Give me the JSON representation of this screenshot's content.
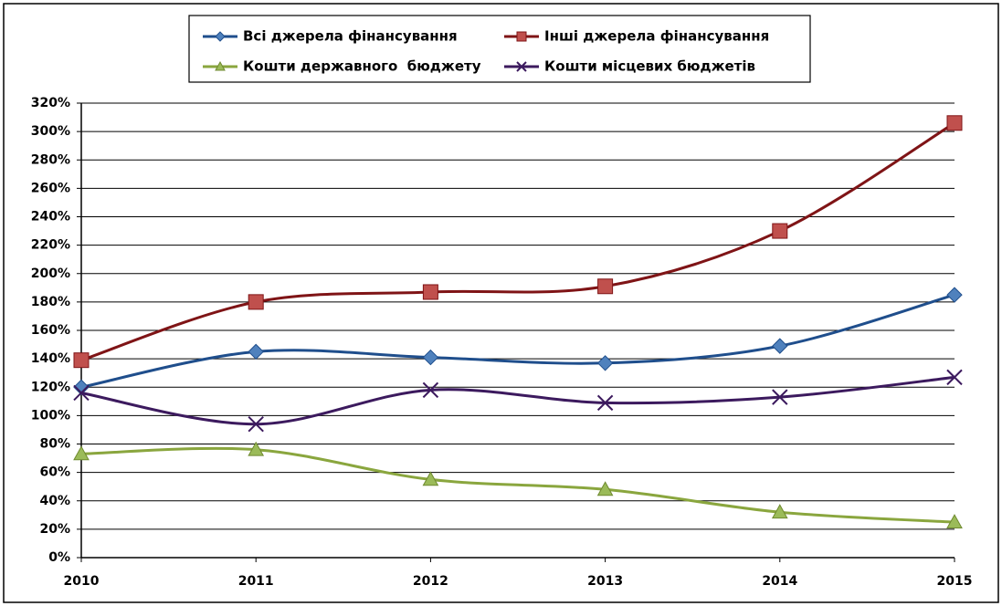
{
  "chart_data": {
    "type": "line",
    "x": [
      2010,
      2011,
      2012,
      2013,
      2014,
      2015
    ],
    "xlim": [
      2010,
      2015
    ],
    "xticks": [
      2010,
      2011,
      2012,
      2013,
      2014,
      2015
    ],
    "ylim": [
      0,
      320
    ],
    "yticks": [
      {
        "value": 0,
        "label": "0%"
      },
      {
        "value": 20,
        "label": "20%"
      },
      {
        "value": 40,
        "label": "40%"
      },
      {
        "value": 60,
        "label": "60%"
      },
      {
        "value": 80,
        "label": "80%"
      },
      {
        "value": 100,
        "label": "100%"
      },
      {
        "value": 120,
        "label": "120%"
      },
      {
        "value": 140,
        "label": "140%"
      },
      {
        "value": 160,
        "label": "160%"
      },
      {
        "value": 180,
        "label": "180%"
      },
      {
        "value": 200,
        "label": "200%"
      },
      {
        "value": 220,
        "label": "220%"
      },
      {
        "value": 240,
        "label": "240%"
      },
      {
        "value": 260,
        "label": "260%"
      },
      {
        "value": 280,
        "label": "280%"
      },
      {
        "value": 300,
        "label": "300%"
      },
      {
        "value": 320,
        "label": "320%"
      }
    ],
    "grid": true,
    "smooth": true,
    "legend": "top",
    "series": [
      {
        "name": "Всі джерела фінансування",
        "color": "#1f4e8c",
        "marker": "diamond",
        "marker_color": "#4f81bd",
        "values": [
          120,
          145,
          141,
          137,
          149,
          185
        ]
      },
      {
        "name": "Інші джерела фінансування",
        "color": "#7f1416",
        "marker": "square",
        "marker_color": "#c0504d",
        "values": [
          139,
          180,
          187,
          191,
          230,
          306
        ]
      },
      {
        "name": "Кошти державного  бюджету",
        "color": "#8aa63e",
        "marker": "triangle",
        "marker_color": "#9bbb59",
        "values": [
          73,
          76,
          55,
          48,
          32,
          25
        ]
      },
      {
        "name": "Кошти місцевих бюджетів",
        "color": "#3c1a5e",
        "marker": "x",
        "marker_color": "#3c1a5e",
        "values": [
          116,
          94,
          118,
          109,
          113,
          127
        ]
      }
    ]
  }
}
